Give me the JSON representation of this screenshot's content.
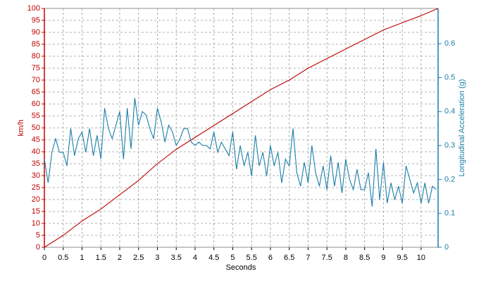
{
  "chart_data": {
    "type": "line",
    "x_label": "Seconds",
    "y_label": "km/h",
    "y2_label": "Longitudinal Acceleration (g)",
    "xlim": [
      0,
      10.45
    ],
    "ylim": [
      0,
      100
    ],
    "y2lim": [
      0,
      0.704
    ],
    "xticks": [
      0,
      0.5,
      1,
      1.5,
      2,
      2.5,
      3,
      3.5,
      4,
      4.5,
      5,
      5.5,
      6,
      6.5,
      7,
      7.5,
      8,
      8.5,
      9,
      9.5,
      10
    ],
    "yticks": [
      0,
      5,
      10,
      15,
      20,
      25,
      30,
      35,
      40,
      45,
      50,
      55,
      60,
      65,
      70,
      75,
      80,
      85,
      90,
      95,
      100
    ],
    "y2ticks": [
      0,
      0.1,
      0.2,
      0.3,
      0.4,
      0.5,
      0.6
    ],
    "y_color": "#c00000",
    "y2_color": "#1a7fa8",
    "grid": true,
    "series": [
      {
        "name": "km/h",
        "color": "#c00000",
        "x": [
          0,
          0.5,
          1,
          1.5,
          2,
          2.5,
          3,
          3.5,
          4,
          4.5,
          5,
          5.5,
          6,
          6.5,
          7,
          7.5,
          8,
          8.5,
          9,
          9.5,
          10,
          10.45
        ],
        "values": [
          0,
          5,
          11,
          16,
          22,
          28,
          35,
          41,
          46,
          51,
          56,
          61,
          66,
          70,
          75,
          79,
          83,
          87,
          91,
          94,
          97,
          100
        ]
      },
      {
        "name": "Longitudinal Acceleration (g)",
        "color": "#1a7fa8",
        "axis": "y2",
        "x": [
          0,
          0.1,
          0.2,
          0.3,
          0.4,
          0.5,
          0.6,
          0.7,
          0.8,
          0.9,
          1,
          1.1,
          1.2,
          1.3,
          1.4,
          1.5,
          1.6,
          1.7,
          1.8,
          1.9,
          2,
          2.1,
          2.2,
          2.3,
          2.4,
          2.5,
          2.6,
          2.7,
          2.8,
          2.9,
          3,
          3.1,
          3.2,
          3.3,
          3.4,
          3.5,
          3.6,
          3.7,
          3.8,
          3.9,
          4,
          4.1,
          4.2,
          4.3,
          4.4,
          4.5,
          4.6,
          4.7,
          4.8,
          4.9,
          5,
          5.1,
          5.2,
          5.3,
          5.4,
          5.5,
          5.6,
          5.7,
          5.8,
          5.9,
          6,
          6.1,
          6.2,
          6.3,
          6.4,
          6.5,
          6.6,
          6.7,
          6.8,
          6.9,
          7,
          7.1,
          7.2,
          7.3,
          7.4,
          7.5,
          7.6,
          7.7,
          7.8,
          7.9,
          8,
          8.1,
          8.2,
          8.3,
          8.4,
          8.5,
          8.6,
          8.7,
          8.8,
          8.9,
          9,
          9.1,
          9.2,
          9.3,
          9.4,
          9.5,
          9.6,
          9.7,
          9.8,
          9.9,
          10,
          10.1,
          10.2,
          10.3,
          10.4
        ],
        "values": [
          0.26,
          0.19,
          0.28,
          0.32,
          0.28,
          0.28,
          0.24,
          0.35,
          0.27,
          0.32,
          0.34,
          0.28,
          0.35,
          0.27,
          0.33,
          0.26,
          0.41,
          0.35,
          0.32,
          0.36,
          0.4,
          0.26,
          0.41,
          0.29,
          0.44,
          0.36,
          0.4,
          0.39,
          0.35,
          0.32,
          0.41,
          0.37,
          0.31,
          0.36,
          0.34,
          0.3,
          0.32,
          0.35,
          0.35,
          0.31,
          0.3,
          0.31,
          0.3,
          0.3,
          0.29,
          0.34,
          0.28,
          0.31,
          0.29,
          0.27,
          0.34,
          0.23,
          0.3,
          0.24,
          0.28,
          0.21,
          0.33,
          0.24,
          0.28,
          0.21,
          0.3,
          0.24,
          0.28,
          0.19,
          0.26,
          0.24,
          0.35,
          0.22,
          0.18,
          0.25,
          0.19,
          0.3,
          0.22,
          0.18,
          0.24,
          0.17,
          0.27,
          0.18,
          0.25,
          0.16,
          0.26,
          0.2,
          0.17,
          0.23,
          0.17,
          0.17,
          0.22,
          0.12,
          0.29,
          0.14,
          0.25,
          0.13,
          0.19,
          0.14,
          0.18,
          0.13,
          0.24,
          0.2,
          0.16,
          0.19,
          0.13,
          0.19,
          0.13,
          0.18,
          0.17
        ]
      }
    ]
  }
}
